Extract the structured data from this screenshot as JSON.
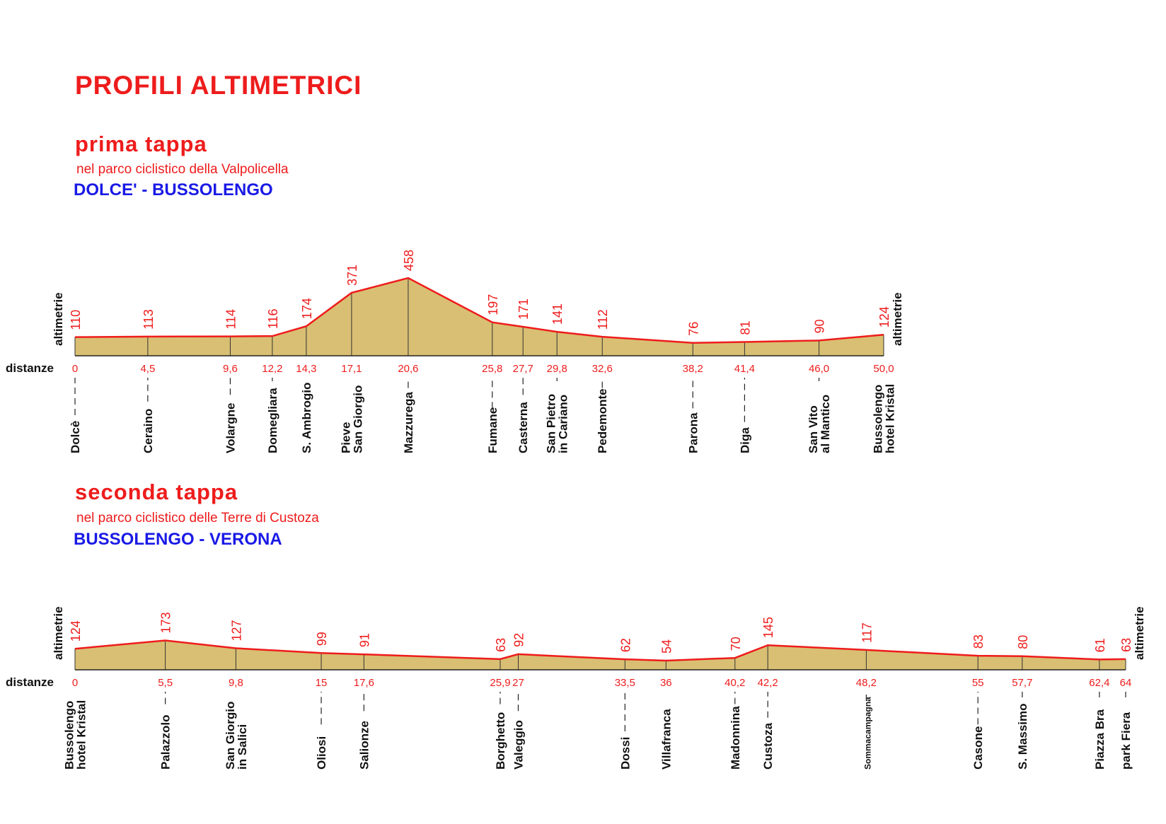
{
  "header": {
    "title": "PROFILI ALTIMETRICI"
  },
  "stages": [
    {
      "title": "prima tappa",
      "subtitle": "nel parco ciclistico della Valpolicella",
      "route": "DOLCE' - BUSSOLENGO"
    },
    {
      "title": "seconda tappa",
      "subtitle": "nel parco ciclistico delle Terre di Custoza",
      "route": "BUSSOLENGO - VERONA"
    }
  ],
  "chart_data": [
    {
      "type": "area",
      "ylabel": "altimetrie",
      "xlabel": "distanze",
      "colors": {
        "fill": "#d9bf73",
        "line": "#ee1c1c",
        "text": "#ee1c1c"
      },
      "points": [
        {
          "place": "Dolcè",
          "distance": "0",
          "km": 0,
          "altitude": 110
        },
        {
          "place": "Ceraino",
          "distance": "4,5",
          "km": 4.5,
          "altitude": 113
        },
        {
          "place": "Volargne",
          "distance": "9,6",
          "km": 9.6,
          "altitude": 114
        },
        {
          "place": "Domegliara",
          "distance": "12,2",
          "km": 12.2,
          "altitude": 116
        },
        {
          "place": "S. Ambrogio",
          "distance": "14,3",
          "km": 14.3,
          "altitude": 174
        },
        {
          "place": "Pieve San Giorgio",
          "place_lines": [
            "Pieve",
            "San Giorgio"
          ],
          "distance": "17,1",
          "km": 17.1,
          "altitude": 371
        },
        {
          "place": "Mazzurega",
          "distance": "20,6",
          "km": 20.6,
          "altitude": 458
        },
        {
          "place": "Fumane",
          "distance": "25,8",
          "km": 25.8,
          "altitude": 197
        },
        {
          "place": "Casterna",
          "distance": "27,7",
          "km": 27.7,
          "altitude": 171
        },
        {
          "place": "San Pietro in Cariano",
          "place_lines": [
            "San Pietro",
            "in Cariano"
          ],
          "distance": "29,8",
          "km": 29.8,
          "altitude": 141
        },
        {
          "place": "Pedemonte",
          "distance": "32,6",
          "km": 32.6,
          "altitude": 112
        },
        {
          "place": "Parona",
          "distance": "38,2",
          "km": 38.2,
          "altitude": 76
        },
        {
          "place": "Diga",
          "distance": "41,4",
          "km": 41.4,
          "altitude": 81
        },
        {
          "place": "San Vito al Mantico",
          "place_lines": [
            "San Vito",
            "al Mantico"
          ],
          "distance": "46,0",
          "km": 46.0,
          "altitude": 90
        },
        {
          "place": "Bussolengo hotel Kristal",
          "place_lines": [
            "Bussolengo",
            "hotel Kristal"
          ],
          "distance": "50,0",
          "km": 50.0,
          "altitude": 124
        }
      ]
    },
    {
      "type": "area",
      "ylabel": "altimetrie",
      "xlabel": "distanze",
      "colors": {
        "fill": "#d9bf73",
        "line": "#ee1c1c",
        "text": "#ee1c1c"
      },
      "points": [
        {
          "place": "Bussolengo hotel Kristal",
          "place_lines": [
            "Bussolengo",
            "hotel Kristal"
          ],
          "distance": "0",
          "km": 0,
          "altitude": 124
        },
        {
          "place": "Palazzolo",
          "distance": "5,5",
          "km": 5.5,
          "altitude": 173
        },
        {
          "place": "San Giorgio in Salici",
          "place_lines": [
            "San Giorgio",
            "in Salici"
          ],
          "distance": "9,8",
          "km": 9.8,
          "altitude": 127
        },
        {
          "place": "Oliosi",
          "distance": "15",
          "km": 15,
          "altitude": 99
        },
        {
          "place": "Salionze",
          "distance": "17,6",
          "km": 17.6,
          "altitude": 91
        },
        {
          "place": "Borghetto",
          "distance": "25,9",
          "km": 25.9,
          "altitude": 63
        },
        {
          "place": "Valeggio",
          "distance": "27",
          "km": 27,
          "altitude": 92
        },
        {
          "place": "Dossi",
          "distance": "33,5",
          "km": 33.5,
          "altitude": 62
        },
        {
          "place": "Villafranca",
          "distance": "36",
          "km": 36,
          "altitude": 54
        },
        {
          "place": "Madonnina",
          "distance": "40,2",
          "km": 40.2,
          "altitude": 70
        },
        {
          "place": "Custoza",
          "distance": "42,2",
          "km": 42.2,
          "altitude": 145
        },
        {
          "place": "Sommacampagna",
          "distance": "48,2",
          "km": 48.2,
          "altitude": 117
        },
        {
          "place": "Casone",
          "distance": "55",
          "km": 55,
          "altitude": 83
        },
        {
          "place": "S. Massimo",
          "distance": "57,7",
          "km": 57.7,
          "altitude": 80
        },
        {
          "place": "Piazza Bra",
          "distance": "62,4",
          "km": 62.4,
          "altitude": 61
        },
        {
          "place": "park Fiera",
          "distance": "64",
          "km": 64,
          "altitude": 63
        }
      ]
    }
  ]
}
